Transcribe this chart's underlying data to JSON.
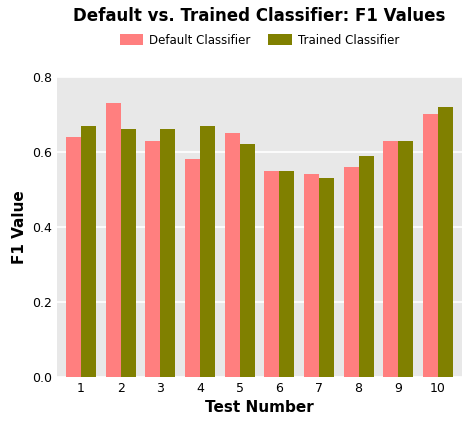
{
  "title": "Default vs. Trained Classifier: F1 Values",
  "xlabel": "Test Number",
  "ylabel": "F1 Value",
  "categories": [
    1,
    2,
    3,
    4,
    5,
    6,
    7,
    8,
    9,
    10
  ],
  "default_values": [
    0.64,
    0.73,
    0.63,
    0.58,
    0.65,
    0.55,
    0.54,
    0.56,
    0.63,
    0.7
  ],
  "trained_values": [
    0.67,
    0.66,
    0.66,
    0.67,
    0.62,
    0.55,
    0.53,
    0.59,
    0.63,
    0.72
  ],
  "default_color": "#FF7F7F",
  "trained_color": "#808000",
  "background_color": "#E8E8E8",
  "ylim": [
    0.0,
    0.8
  ],
  "yticks": [
    0.0,
    0.2,
    0.4,
    0.6,
    0.8
  ],
  "legend_labels": [
    "Default Classifier",
    "Trained Classifier"
  ],
  "bar_width": 0.38,
  "title_fontsize": 12,
  "axis_label_fontsize": 11,
  "tick_fontsize": 9
}
